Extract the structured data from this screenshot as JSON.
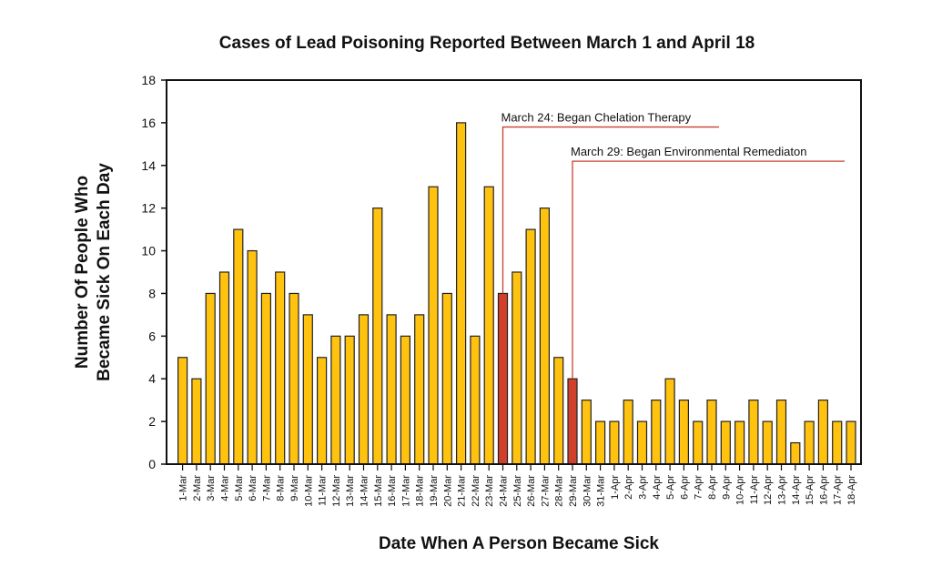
{
  "chart_data": {
    "type": "bar",
    "title": "Cases of Lead Poisoning Reported Between March 1 and April 18",
    "xlabel": "Date When A Person Became Sick",
    "ylabel_lines": [
      "Number Of People Who",
      "Became Sick On Each Day"
    ],
    "ylim": [
      0,
      18
    ],
    "yticks": [
      0,
      2,
      4,
      6,
      8,
      10,
      12,
      14,
      16,
      18
    ],
    "grid": false,
    "categories": [
      "1-Mar",
      "2-Mar",
      "3-Mar",
      "4-Mar",
      "5-Mar",
      "6-Mar",
      "7-Mar",
      "8-Mar",
      "9-Mar",
      "10-Mar",
      "11-Mar",
      "12-Mar",
      "13-Mar",
      "14-Mar",
      "15-Mar",
      "16-Mar",
      "17-Mar",
      "18-Mar",
      "19-Mar",
      "20-Mar",
      "21-Mar",
      "22-Mar",
      "23-Mar",
      "24-Mar",
      "25-Mar",
      "26-Mar",
      "27-Mar",
      "28-Mar",
      "29-Mar",
      "30-Mar",
      "31-Mar",
      "1-Apr",
      "2-Apr",
      "3-Apr",
      "4-Apr",
      "5-Apr",
      "6-Apr",
      "7-Apr",
      "8-Apr",
      "9-Apr",
      "10-Apr",
      "11-Apr",
      "12-Apr",
      "13-Apr",
      "14-Apr",
      "15-Apr",
      "16-Apr",
      "17-Apr",
      "18-Apr"
    ],
    "values": [
      5,
      4,
      8,
      9,
      11,
      10,
      8,
      9,
      8,
      7,
      5,
      6,
      6,
      7,
      12,
      7,
      6,
      7,
      13,
      8,
      16,
      6,
      13,
      8,
      9,
      11,
      12,
      5,
      4,
      3,
      2,
      2,
      3,
      2,
      3,
      4,
      3,
      2,
      3,
      2,
      2,
      3,
      2,
      3,
      1,
      2,
      3,
      2,
      2
    ],
    "highlighted": [
      "24-Mar",
      "29-Mar"
    ],
    "colors": {
      "bar": "#FFC20E",
      "highlight": "#D1402B",
      "annotation_line": "#C8412F"
    },
    "annotations": [
      {
        "category": "24-Mar",
        "text": "March 24: Began Chelation Therapy",
        "level": 15.8,
        "end_category": "41-Mar-end"
      },
      {
        "category": "29-Mar",
        "text": "March 29:  Began Environmental Remediaton",
        "level": 14.2
      }
    ]
  }
}
